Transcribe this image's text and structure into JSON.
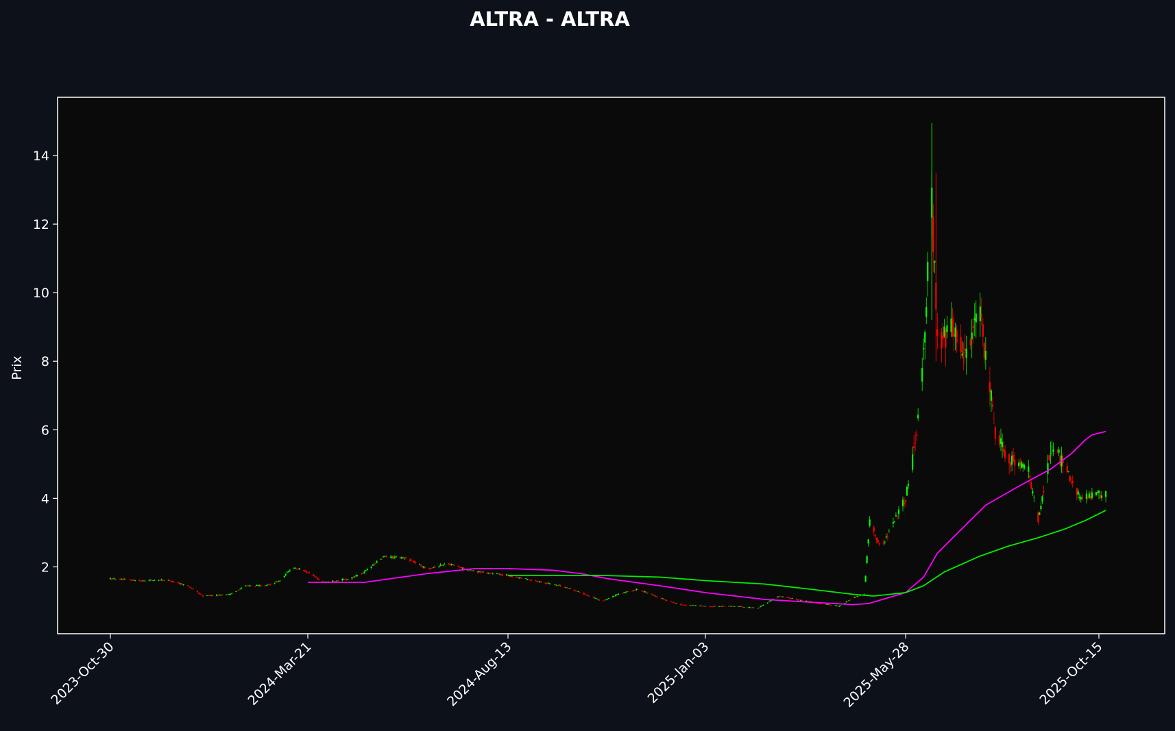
{
  "chart_data": {
    "type": "candlestick",
    "title": "ALTRA - ALTRA",
    "ylabel": "Prix",
    "xlabel": "",
    "ylim": [
      0.05,
      15.7
    ],
    "y_ticks": [
      2,
      4,
      6,
      8,
      10,
      12,
      14
    ],
    "x_ticks": [
      "2023-Oct-30",
      "2024-Mar-21",
      "2024-Aug-13",
      "2025-Jan-03",
      "2025-May-28",
      "2025-Oct-15"
    ],
    "x_start": "2023-Oct-30",
    "x_end": "2025-Oct-20",
    "grid": false,
    "colors": {
      "background": "#0d111a",
      "plot_background": "#0a0a0a",
      "up": "#00ff00",
      "down": "#ff0000",
      "ma_short": "#ff00ff",
      "ma_long": "#00ee00",
      "axis": "#ffffff"
    },
    "price_path": [
      [
        "2023-Oct-30",
        1.65
      ],
      [
        "2023-Nov-20",
        1.6
      ],
      [
        "2023-Dec-10",
        1.62
      ],
      [
        "2023-Dec-25",
        1.45
      ],
      [
        "2024-Jan-05",
        1.15
      ],
      [
        "2024-Jan-25",
        1.2
      ],
      [
        "2024-Feb-05",
        1.45
      ],
      [
        "2024-Feb-20",
        1.45
      ],
      [
        "2024-Mar-01",
        1.6
      ],
      [
        "2024-Mar-10",
        2.0
      ],
      [
        "2024-Mar-21",
        1.85
      ],
      [
        "2024-Apr-01",
        1.55
      ],
      [
        "2024-Apr-20",
        1.65
      ],
      [
        "2024-May-01",
        1.85
      ],
      [
        "2024-May-15",
        2.3
      ],
      [
        "2024-Jun-01",
        2.25
      ],
      [
        "2024-Jun-15",
        1.95
      ],
      [
        "2024-Jul-01",
        2.1
      ],
      [
        "2024-Jul-15",
        1.9
      ],
      [
        "2024-Aug-13",
        1.75
      ],
      [
        "2024-Sep-01",
        1.6
      ],
      [
        "2024-Sep-20",
        1.45
      ],
      [
        "2024-Oct-05",
        1.25
      ],
      [
        "2024-Oct-20",
        1.0
      ],
      [
        "2024-Nov-01",
        1.2
      ],
      [
        "2024-Nov-15",
        1.35
      ],
      [
        "2024-Dec-01",
        1.1
      ],
      [
        "2024-Dec-15",
        0.9
      ],
      [
        "2025-Jan-03",
        0.85
      ],
      [
        "2025-Jan-25",
        0.85
      ],
      [
        "2025-Feb-10",
        0.8
      ],
      [
        "2025-Feb-25",
        1.15
      ],
      [
        "2025-Mar-10",
        1.05
      ],
      [
        "2025-Mar-25",
        0.95
      ],
      [
        "2025-Apr-10",
        0.85
      ],
      [
        "2025-Apr-20",
        1.1
      ],
      [
        "2025-Apr-28",
        1.2
      ],
      [
        "2025-May-02",
        3.4
      ],
      [
        "2025-May-10",
        2.5
      ],
      [
        "2025-May-20",
        3.4
      ],
      [
        "2025-May-28",
        4.0
      ],
      [
        "2025-Jun-05",
        6.0
      ],
      [
        "2025-Jun-12",
        9.5
      ],
      [
        "2025-Jun-15",
        13.8
      ],
      [
        "2025-Jun-20",
        8.5
      ],
      [
        "2025-Jul-01",
        9.0
      ],
      [
        "2025-Jul-10",
        8.2
      ],
      [
        "2025-Jul-20",
        9.5
      ],
      [
        "2025-Aug-01",
        6.0
      ],
      [
        "2025-Aug-10",
        5.2
      ],
      [
        "2025-Aug-25",
        4.8
      ],
      [
        "2025-Sep-01",
        3.3
      ],
      [
        "2025-Sep-10",
        5.5
      ],
      [
        "2025-Sep-20",
        5.0
      ],
      [
        "2025-Oct-01",
        4.0
      ],
      [
        "2025-Oct-10",
        4.1
      ],
      [
        "2025-Oct-20",
        4.1
      ]
    ],
    "series": [
      {
        "type": "line",
        "color": "#ff00ff",
        "points": [
          [
            "2024-Mar-21",
            1.55
          ],
          [
            "2024-May-01",
            1.55
          ],
          [
            "2024-Jun-15",
            1.8
          ],
          [
            "2024-Jul-20",
            1.95
          ],
          [
            "2024-Aug-13",
            1.95
          ],
          [
            "2024-Sep-15",
            1.9
          ],
          [
            "2024-Oct-05",
            1.8
          ],
          [
            "2024-Oct-25",
            1.65
          ],
          [
            "2024-Dec-01",
            1.45
          ],
          [
            "2025-Jan-03",
            1.25
          ],
          [
            "2025-Feb-15",
            1.05
          ],
          [
            "2025-Mar-20",
            0.97
          ],
          [
            "2025-Apr-20",
            0.9
          ],
          [
            "2025-May-01",
            0.93
          ],
          [
            "2025-May-28",
            1.25
          ],
          [
            "2025-Jun-10",
            1.7
          ],
          [
            "2025-Jun-20",
            2.4
          ],
          [
            "2025-Jul-05",
            3.0
          ],
          [
            "2025-Jul-25",
            3.8
          ],
          [
            "2025-Aug-20",
            4.4
          ],
          [
            "2025-Sep-10",
            4.85
          ],
          [
            "2025-Sep-25",
            5.3
          ],
          [
            "2025-Oct-05",
            5.7
          ],
          [
            "2025-Oct-10",
            5.85
          ],
          [
            "2025-Oct-20",
            5.95
          ]
        ]
      },
      {
        "type": "line",
        "color": "#00ee00",
        "points": [
          [
            "2024-Aug-13",
            1.75
          ],
          [
            "2024-Sep-20",
            1.75
          ],
          [
            "2024-Oct-20",
            1.75
          ],
          [
            "2024-Dec-01",
            1.7
          ],
          [
            "2025-Jan-03",
            1.6
          ],
          [
            "2025-Feb-15",
            1.5
          ],
          [
            "2025-Mar-20",
            1.35
          ],
          [
            "2025-Apr-20",
            1.2
          ],
          [
            "2025-May-05",
            1.15
          ],
          [
            "2025-May-28",
            1.25
          ],
          [
            "2025-Jun-10",
            1.45
          ],
          [
            "2025-Jun-25",
            1.85
          ],
          [
            "2025-Jul-20",
            2.3
          ],
          [
            "2025-Aug-10",
            2.6
          ],
          [
            "2025-Sep-01",
            2.85
          ],
          [
            "2025-Sep-20",
            3.1
          ],
          [
            "2025-Oct-05",
            3.35
          ],
          [
            "2025-Oct-20",
            3.65
          ]
        ]
      }
    ]
  }
}
